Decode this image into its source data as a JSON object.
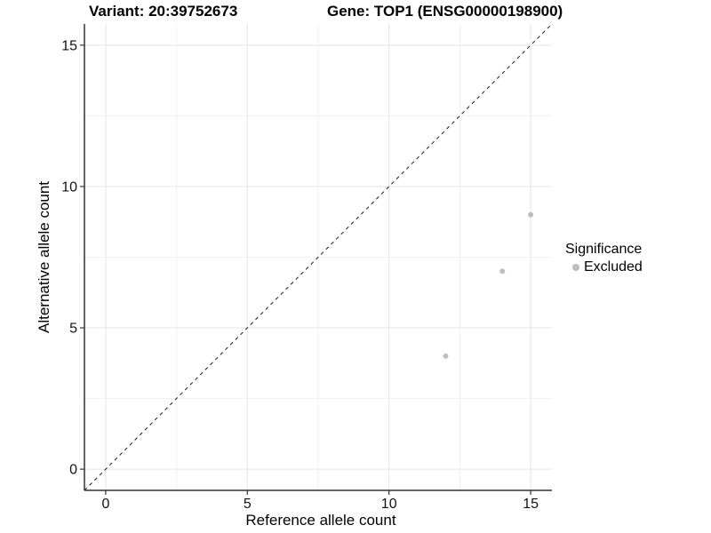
{
  "header": {
    "variant_title": "Variant: 20:39752673",
    "gene_title": "Gene: TOP1 (ENSG00000198900)"
  },
  "legend": {
    "title": "Significance",
    "items": [
      {
        "label": "Excluded",
        "color": "#bebebe"
      }
    ]
  },
  "colors": {
    "point": "#bebebe",
    "grid_major": "#e4e4e4",
    "grid_minor": "#f1f1f1",
    "axis_line": "#333333",
    "tick_mark": "#333333",
    "tick_label": "#111111",
    "identity_line": "#1a1a1a",
    "axis_title": "#000000"
  },
  "chart_data": {
    "type": "scatter",
    "title": "Variant: 20:39752673 | Gene: TOP1 (ENSG00000198900)",
    "xlabel": "Reference allele count",
    "ylabel": "Alternative allele count",
    "xlim": [
      -0.75,
      15.75
    ],
    "ylim": [
      -0.75,
      15.75
    ],
    "x_ticks": [
      0,
      5,
      10,
      15
    ],
    "y_ticks": [
      0,
      5,
      10,
      15
    ],
    "x_minor_ticks": [
      2.5,
      7.5,
      12.5
    ],
    "y_minor_ticks": [
      2.5,
      7.5,
      12.5
    ],
    "grid": "major+minor",
    "legend_position": "right",
    "reference_line": {
      "type": "identity",
      "equation": "y = x",
      "style": "dashed"
    },
    "series": [
      {
        "name": "Excluded",
        "color": "#bebebe",
        "points": [
          {
            "x": 12,
            "y": 4
          },
          {
            "x": 14,
            "y": 7
          },
          {
            "x": 15,
            "y": 9
          }
        ]
      }
    ]
  }
}
